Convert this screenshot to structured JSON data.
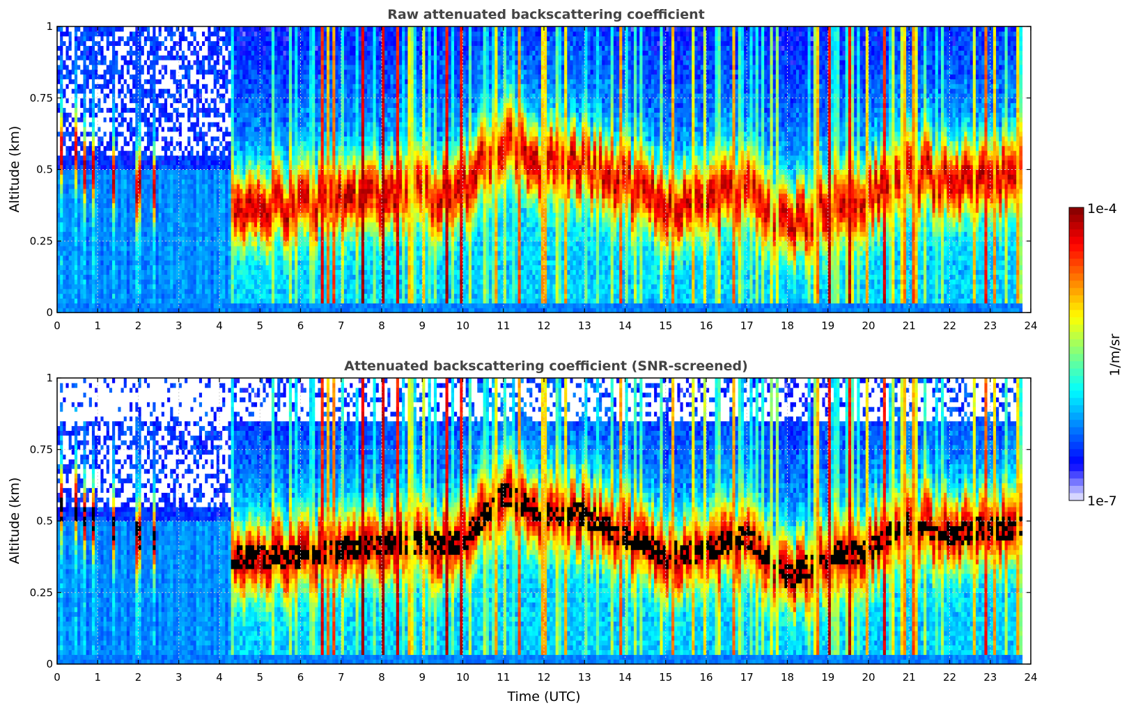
{
  "chart_data": [
    {
      "type": "heatmap",
      "title": "Raw attenuated backscattering coefficient",
      "xlabel": "",
      "ylabel": "Altitude (km)",
      "xlim": [
        0,
        24
      ],
      "ylim": [
        0,
        1
      ],
      "xticks": [
        "0",
        "1",
        "2",
        "3",
        "4",
        "5",
        "6",
        "7",
        "8",
        "9",
        "10",
        "11",
        "12",
        "13",
        "14",
        "15",
        "16",
        "17",
        "18",
        "19",
        "20",
        "21",
        "22",
        "23",
        "24"
      ],
      "yticks": [
        "0",
        "0.25",
        "0.5",
        "0.75",
        "1"
      ],
      "grid": true,
      "data_end_time": 23.8,
      "signal_layer_altitude": [
        0.55,
        0.5,
        0.45,
        0.4,
        0.38,
        0.38,
        0.38,
        0.4,
        0.42,
        0.42,
        0.43,
        0.6,
        0.52,
        0.52,
        0.45,
        0.38,
        0.4,
        0.45,
        0.3,
        0.38,
        0.4,
        0.5,
        0.45,
        0.48
      ]
    },
    {
      "type": "heatmap",
      "title": "Attenuated backscattering coefficient (SNR-screened)",
      "xlabel": "Time (UTC)",
      "ylabel": "Altitude (km)",
      "xlim": [
        0,
        24
      ],
      "ylim": [
        0,
        1
      ],
      "xticks": [
        "0",
        "1",
        "2",
        "3",
        "4",
        "5",
        "6",
        "7",
        "8",
        "9",
        "10",
        "11",
        "12",
        "13",
        "14",
        "15",
        "16",
        "17",
        "18",
        "19",
        "20",
        "21",
        "22",
        "23",
        "24"
      ],
      "yticks": [
        "0",
        "0.25",
        "0.5",
        "0.75",
        "1"
      ],
      "grid": true,
      "data_end_time": 23.8
    }
  ],
  "colorbar": {
    "label": "1/m/sr",
    "min_label": "1e-7",
    "max_label": "1e-4",
    "colormap": [
      "#eeeeff",
      "#0000ff",
      "#0080ff",
      "#00ffff",
      "#80ff80",
      "#ffff00",
      "#ff8000",
      "#ff0000",
      "#800000"
    ]
  }
}
